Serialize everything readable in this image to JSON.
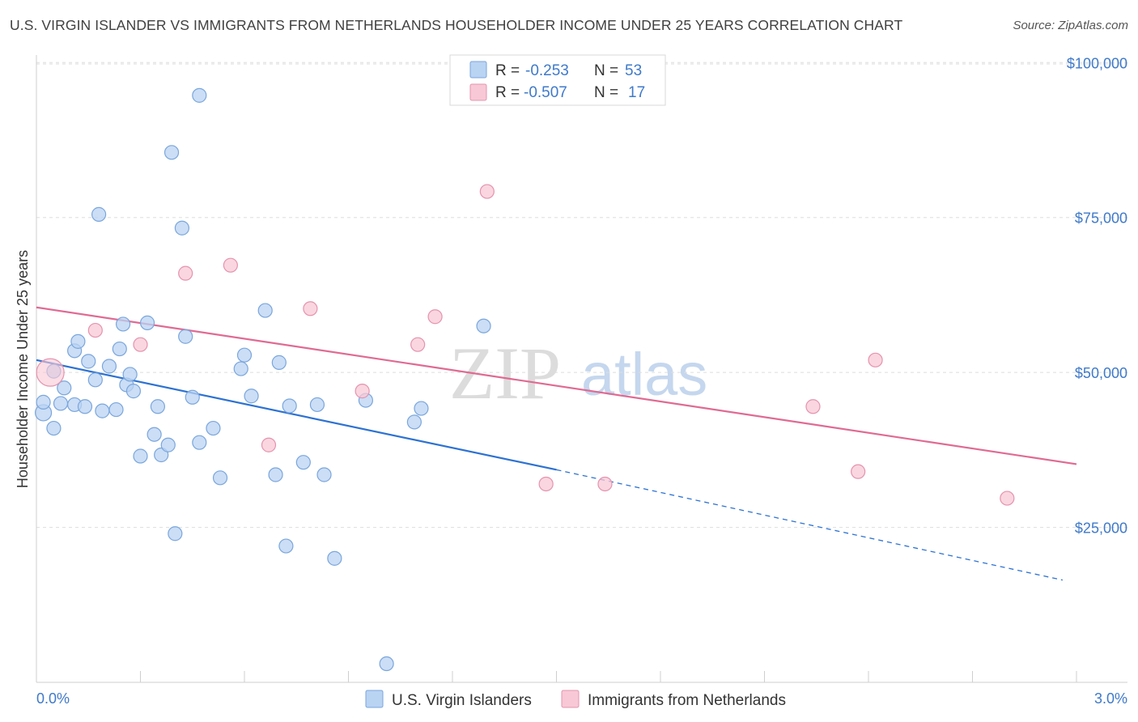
{
  "title": "U.S. VIRGIN ISLANDER VS IMMIGRANTS FROM NETHERLANDS HOUSEHOLDER INCOME UNDER 25 YEARS CORRELATION CHART",
  "source": "Source: ZipAtlas.com",
  "watermark": {
    "zip": "ZIP",
    "atlas": "atlas"
  },
  "colors": {
    "blue_fill": "#b9d3f3",
    "blue_stroke": "#7aa6dc",
    "blue_line": "#2d72d2",
    "pink_fill": "#f8c8d6",
    "pink_stroke": "#e593ae",
    "pink_line": "#e06a93",
    "value_text": "#3f7ac9",
    "grid": "#dddddd"
  },
  "legend": {
    "rows": [
      {
        "r_label": "R =",
        "r_value": "-0.253",
        "n_label": "N =",
        "n_value": "53",
        "series": "blue"
      },
      {
        "r_label": "R =",
        "r_value": "-0.507",
        "n_label": "N =",
        "n_value": "17",
        "series": "pink"
      }
    ]
  },
  "chart_data": {
    "type": "scatter",
    "ylabel": "Householder Income Under 25 years",
    "xlim": [
      0,
      3.0
    ],
    "ylim": [
      0,
      105000
    ],
    "x_tick_labels": [
      "0.0%",
      "3.0%"
    ],
    "y_ticks": [
      25000,
      50000,
      75000,
      100000
    ],
    "y_tick_labels": [
      "$25,000",
      "$50,000",
      "$75,000",
      "$100,000"
    ],
    "grid": "horizontal dashed",
    "legend_position": "top-center",
    "series": [
      {
        "name": "U.S. Virgin Islanders",
        "color": "blue",
        "points": [
          [
            0.02,
            43500
          ],
          [
            0.02,
            45200
          ],
          [
            0.05,
            50200
          ],
          [
            0.05,
            41000
          ],
          [
            0.07,
            45000
          ],
          [
            0.08,
            47500
          ],
          [
            0.11,
            44800
          ],
          [
            0.11,
            53500
          ],
          [
            0.12,
            55000
          ],
          [
            0.14,
            44500
          ],
          [
            0.15,
            51800
          ],
          [
            0.17,
            48800
          ],
          [
            0.18,
            75500
          ],
          [
            0.19,
            43800
          ],
          [
            0.21,
            51000
          ],
          [
            0.23,
            44000
          ],
          [
            0.24,
            53800
          ],
          [
            0.25,
            57800
          ],
          [
            0.26,
            48000
          ],
          [
            0.27,
            49700
          ],
          [
            0.28,
            47000
          ],
          [
            0.3,
            36500
          ],
          [
            0.32,
            58000
          ],
          [
            0.34,
            40000
          ],
          [
            0.35,
            44500
          ],
          [
            0.36,
            36700
          ],
          [
            0.38,
            38300
          ],
          [
            0.39,
            85500
          ],
          [
            0.4,
            24000
          ],
          [
            0.42,
            73300
          ],
          [
            0.43,
            55800
          ],
          [
            0.45,
            46000
          ],
          [
            0.47,
            38700
          ],
          [
            0.47,
            94700
          ],
          [
            0.51,
            41000
          ],
          [
            0.53,
            33000
          ],
          [
            0.59,
            50600
          ],
          [
            0.6,
            52800
          ],
          [
            0.62,
            46200
          ],
          [
            0.66,
            60000
          ],
          [
            0.69,
            33500
          ],
          [
            0.7,
            51600
          ],
          [
            0.72,
            22000
          ],
          [
            0.73,
            44600
          ],
          [
            0.77,
            35500
          ],
          [
            0.81,
            44800
          ],
          [
            0.83,
            33500
          ],
          [
            0.86,
            20000
          ],
          [
            0.95,
            45500
          ],
          [
            1.01,
            3000
          ],
          [
            1.09,
            42000
          ],
          [
            1.11,
            44200
          ],
          [
            1.29,
            57500
          ]
        ],
        "trend": {
          "x0": 0.0,
          "y0": 52000,
          "x1": 1.5,
          "y1": 34300,
          "x_dash_end": 2.96,
          "y_dash_end": 16500
        }
      },
      {
        "name": "Immigrants from Netherlands",
        "color": "pink",
        "points": [
          [
            0.04,
            50000
          ],
          [
            0.17,
            56800
          ],
          [
            0.3,
            54500
          ],
          [
            0.43,
            66000
          ],
          [
            0.56,
            67300
          ],
          [
            0.67,
            38300
          ],
          [
            0.79,
            60300
          ],
          [
            0.94,
            47000
          ],
          [
            1.1,
            54500
          ],
          [
            1.15,
            59000
          ],
          [
            1.3,
            79200
          ],
          [
            1.47,
            32000
          ],
          [
            1.64,
            32000
          ],
          [
            2.24,
            44500
          ],
          [
            2.37,
            34000
          ],
          [
            2.42,
            52000
          ],
          [
            2.8,
            29700
          ]
        ],
        "trend": {
          "x0": 0.0,
          "y0": 60500,
          "x1": 3.0,
          "y1": 35200
        }
      }
    ]
  }
}
